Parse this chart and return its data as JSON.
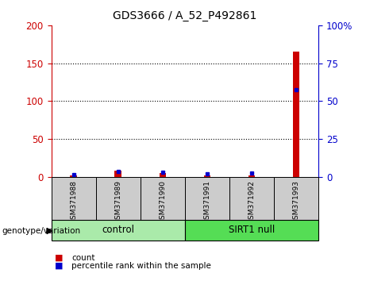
{
  "title": "GDS3666 / A_52_P492861",
  "samples": [
    "GSM371988",
    "GSM371989",
    "GSM371990",
    "GSM371991",
    "GSM371992",
    "GSM371993"
  ],
  "count_values": [
    2.5,
    8.0,
    5.5,
    2.5,
    2.5,
    165.0
  ],
  "percentile_values": [
    1.5,
    3.5,
    3.0,
    2.0,
    2.5,
    57.5
  ],
  "left_ylim": [
    0,
    200
  ],
  "right_ylim": [
    0,
    100
  ],
  "left_yticks": [
    0,
    50,
    100,
    150,
    200
  ],
  "right_yticks": [
    0,
    25,
    50,
    75,
    100
  ],
  "right_yticklabels": [
    "0",
    "25",
    "50",
    "75",
    "100%"
  ],
  "left_color": "#cc0000",
  "right_color": "#0000cc",
  "bar_color": "#cc0000",
  "dot_color": "#0000cc",
  "groups": [
    {
      "label": "control",
      "start": 0,
      "end": 3,
      "color": "#aaeaaa"
    },
    {
      "label": "SIRT1 null",
      "start": 3,
      "end": 6,
      "color": "#55dd55"
    }
  ],
  "group_label": "genotype/variation",
  "legend_count": "count",
  "legend_percentile": "percentile rank within the sample",
  "sample_box_color": "#cccccc",
  "bar_width": 0.15
}
